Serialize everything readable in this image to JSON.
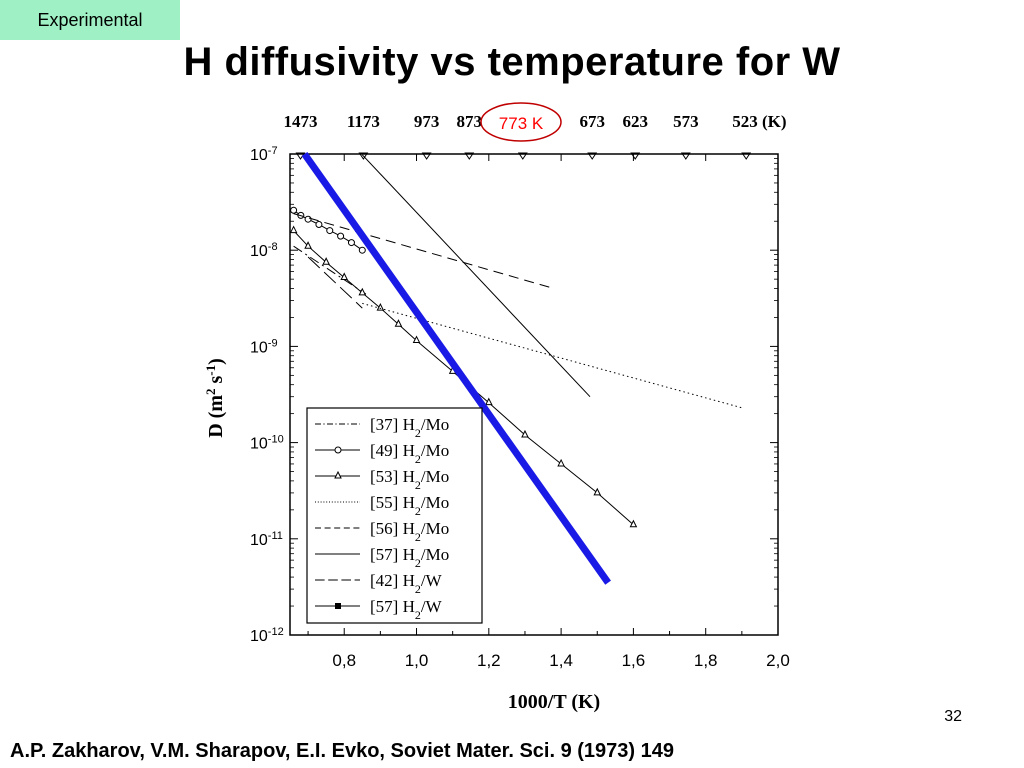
{
  "slide": {
    "badge": "Experimental",
    "title": "H diffusivity vs temperature for W",
    "page_number": "32",
    "citation": "A.P. Zakharov, V.M. Sharapov, E.I. Evko, Soviet Mater. Sci. 9 (1973) 149",
    "highlight_label": "773 K",
    "highlight_color": "#ff0000",
    "badge_color": "#9ff0c4"
  },
  "chart_data": {
    "type": "line",
    "xlabel": "1000/T (K)",
    "ylabel_parts": [
      "D (m",
      "2",
      " s",
      "-1",
      ")"
    ],
    "xlim": [
      0.65,
      2.0
    ],
    "x_scale": "linear",
    "y_scale": "log",
    "ylim": [
      1e-12,
      1e-07
    ],
    "x_ticks": [
      0.8,
      1.0,
      1.2,
      1.4,
      1.6,
      1.8,
      2.0
    ],
    "x_tick_labels": [
      "0,8",
      "1,0",
      "1,2",
      "1,4",
      "1,6",
      "1,8",
      "2,0"
    ],
    "y_ticks": [
      1e-07,
      1e-08,
      1e-09,
      1e-10,
      1e-11,
      1e-12
    ],
    "y_tick_labels": [
      {
        "base": "10",
        "exp": "-7"
      },
      {
        "base": "10",
        "exp": "-8"
      },
      {
        "base": "10",
        "exp": "-9"
      },
      {
        "base": "10",
        "exp": "-10"
      },
      {
        "base": "10",
        "exp": "-11"
      },
      {
        "base": "10",
        "exp": "-12"
      }
    ],
    "top_axis_labels": [
      {
        "x": 0.679,
        "label": "1473"
      },
      {
        "x": 0.853,
        "label": "1173"
      },
      {
        "x": 1.028,
        "label": "973"
      },
      {
        "x": 1.146,
        "label": "873"
      },
      {
        "x": 1.486,
        "label": "673"
      },
      {
        "x": 1.605,
        "label": "623"
      },
      {
        "x": 1.745,
        "label": "573"
      },
      {
        "x": 1.912,
        "label": "523 (K)"
      }
    ],
    "top_markers_x": [
      0.679,
      0.853,
      1.028,
      1.146,
      1.294,
      1.486,
      1.605,
      1.745,
      1.912
    ],
    "highlight_x": 1.294,
    "grid": false,
    "legend_position": "lower-left inset",
    "series": [
      {
        "name": "[37] H2/Mo",
        "ref": "[37]",
        "system": "H",
        "sub": "2",
        "tail": "/Mo",
        "style": "dashdot",
        "marker": "none",
        "x": [
          0.66,
          0.86
        ],
        "y": [
          1.1e-08,
          3.5e-09
        ],
        "color": "#000000",
        "width": 1
      },
      {
        "name": "[49] H2/Mo",
        "ref": "[49]",
        "system": "H",
        "sub": "2",
        "tail": "/Mo",
        "style": "solid",
        "marker": "circle",
        "x": [
          0.66,
          0.68,
          0.7,
          0.73,
          0.76,
          0.79,
          0.82,
          0.85
        ],
        "y": [
          2.6e-08,
          2.3e-08,
          2.1e-08,
          1.85e-08,
          1.6e-08,
          1.4e-08,
          1.2e-08,
          1e-08
        ],
        "color": "#000000",
        "width": 1
      },
      {
        "name": "[53] H2/Mo",
        "ref": "[53]",
        "system": "H",
        "sub": "2",
        "tail": "/Mo",
        "style": "solid",
        "marker": "triangle",
        "x": [
          0.66,
          0.7,
          0.75,
          0.8,
          0.85,
          0.9,
          0.95,
          1.0,
          1.1,
          1.2,
          1.3,
          1.4,
          1.5,
          1.6
        ],
        "y": [
          1.6e-08,
          1.1e-08,
          7.5e-09,
          5.2e-09,
          3.6e-09,
          2.5e-09,
          1.7e-09,
          1.15e-09,
          5.5e-10,
          2.6e-10,
          1.2e-10,
          6e-11,
          3e-11,
          1.4e-11
        ],
        "color": "#000000",
        "width": 1
      },
      {
        "name": "[55] H2/Mo",
        "ref": "[55]",
        "system": "H",
        "sub": "2",
        "tail": "/Mo",
        "style": "dotted",
        "marker": "none",
        "x": [
          0.85,
          1.9
        ],
        "y": [
          2.8e-09,
          2.3e-10
        ],
        "color": "#000000",
        "width": 1
      },
      {
        "name": "[56] H2/Mo",
        "ref": "[56]",
        "system": "H",
        "sub": "2",
        "tail": "/Mo",
        "style": "dashed",
        "marker": "none",
        "x": [
          0.66,
          1.38
        ],
        "y": [
          2.4e-08,
          4e-09
        ],
        "color": "#000000",
        "width": 1
      },
      {
        "name": "[57] H2/Mo",
        "ref": "[57]",
        "system": "H",
        "sub": "2",
        "tail": "/Mo",
        "style": "solid",
        "marker": "none",
        "x": [
          0.85,
          1.48
        ],
        "y": [
          9.8e-08,
          3e-10
        ],
        "color": "#000000",
        "width": 1
      },
      {
        "name": "[42] H2/W",
        "ref": "[42]",
        "system": "H",
        "sub": "2",
        "tail": "/W",
        "style": "longdash",
        "marker": "none",
        "x": [
          0.7,
          0.85
        ],
        "y": [
          8.5e-09,
          2.5e-09
        ],
        "color": "#000000",
        "width": 1
      },
      {
        "name": "[57] H2/W",
        "ref": "[57]",
        "system": "H",
        "sub": "2",
        "tail": "/W",
        "style": "solid",
        "marker": "square",
        "x": [
          0.69,
          1.53
        ],
        "y": [
          1e-07,
          3.5e-12
        ],
        "color": "#1a1ae6",
        "width": 7
      }
    ]
  }
}
